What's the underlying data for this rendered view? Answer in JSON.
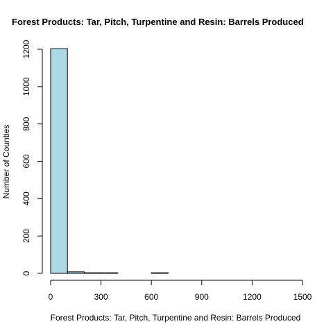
{
  "chart_data": {
    "type": "bar",
    "title": "Forest Products: Tar, Pitch, Turpentine and Resin: Barrels Produced",
    "xlabel": "Forest Products: Tar, Pitch, Turpentine and Resin: Barrels Produced",
    "ylabel": "Number of Counties",
    "bin_width": 100,
    "bins": [
      {
        "start": 0,
        "end": 100,
        "count": 1203
      },
      {
        "start": 100,
        "end": 200,
        "count": 8
      },
      {
        "start": 200,
        "end": 300,
        "count": 3
      },
      {
        "start": 300,
        "end": 400,
        "count": 3
      },
      {
        "start": 400,
        "end": 500,
        "count": 0
      },
      {
        "start": 500,
        "end": 600,
        "count": 0
      },
      {
        "start": 600,
        "end": 700,
        "count": 3
      },
      {
        "start": 700,
        "end": 800,
        "count": 0
      },
      {
        "start": 800,
        "end": 900,
        "count": 0
      },
      {
        "start": 900,
        "end": 1000,
        "count": 0
      },
      {
        "start": 1000,
        "end": 1100,
        "count": 0
      },
      {
        "start": 1100,
        "end": 1200,
        "count": 0
      },
      {
        "start": 1200,
        "end": 1300,
        "count": 0
      },
      {
        "start": 1300,
        "end": 1400,
        "count": 0
      },
      {
        "start": 1400,
        "end": 1500,
        "count": 0
      },
      {
        "start": 1500,
        "end": 1550,
        "count": 0
      }
    ],
    "xlim": [
      0,
      1550
    ],
    "ylim": [
      0,
      1200
    ],
    "x_ticks": [
      0,
      300,
      600,
      900,
      1200,
      1500
    ],
    "y_ticks": [
      0,
      200,
      400,
      600,
      800,
      1000,
      1200
    ],
    "bar_color": "#add8e6",
    "grid": false
  }
}
